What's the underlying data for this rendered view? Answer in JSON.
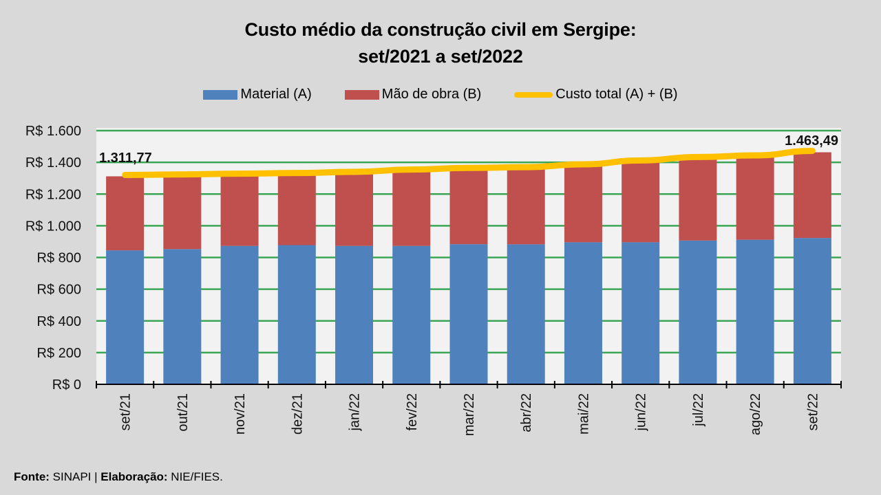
{
  "chart_data": {
    "type": "bar",
    "stacked": true,
    "title": "Custo médio da construção civil em Sergipe:",
    "subtitle": "set/2021 a set/2022",
    "xlabel": "",
    "ylabel": "",
    "categories": [
      "set/21",
      "out/21",
      "nov/21",
      "dez/21",
      "jan/22",
      "fev/22",
      "mar/22",
      "abr/22",
      "mai/22",
      "jun/22",
      "jul/22",
      "ago/22",
      "set/22"
    ],
    "series": [
      {
        "name": "Material (A)",
        "type": "bar",
        "color": "#4f81bd",
        "values": [
          845,
          853,
          873,
          878,
          873,
          873,
          884,
          883,
          896,
          896,
          907,
          912,
          923
        ]
      },
      {
        "name": "Mão de obra (B)",
        "type": "bar",
        "color": "#c0504d",
        "values": [
          466.77,
          462,
          447,
          446,
          458,
          473,
          472,
          478,
          483,
          507,
          518,
          523,
          540.49
        ]
      },
      {
        "name": "Custo total (A) + (B)",
        "type": "line",
        "color": "#ffc000",
        "values": [
          1311.77,
          1315,
          1320,
          1324,
          1331,
          1346,
          1356,
          1361,
          1379,
          1403,
          1425,
          1435,
          1463.49
        ]
      }
    ],
    "data_labels": [
      {
        "category": "set/21",
        "text": "1.311,77"
      },
      {
        "category": "set/22",
        "text": "1.463,49"
      }
    ],
    "ylim": [
      0,
      1600
    ],
    "yticks": [
      0,
      200,
      400,
      600,
      800,
      1000,
      1200,
      1400,
      1600
    ],
    "ytick_labels": [
      "R$ 0",
      "R$ 200",
      "R$ 400",
      "R$ 600",
      "R$ 800",
      "R$ 1.000",
      "R$ 1.200",
      "R$ 1.400",
      "R$ 1.600"
    ],
    "grid": true,
    "grid_color": "#3aa655",
    "legend_position": "top-center"
  },
  "footer": {
    "source_label": "Fonte:",
    "source_value": " SINAPI | ",
    "credit_label": "Elaboração:",
    "credit_value": " NIE/FIES."
  }
}
